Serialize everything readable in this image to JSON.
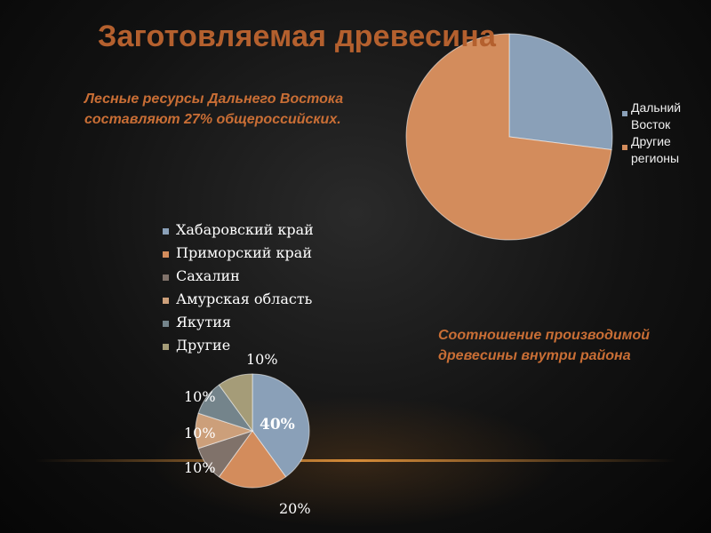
{
  "title": "Заготовляемая древесина",
  "caption_forest": "Лесные ресурсы Дальнего Востока составляют 27% общероссийских.",
  "caption_ratio": "Соотношение производимой древесины внутри района",
  "chart_data": [
    {
      "type": "pie",
      "slices": [
        {
          "label": "Дальний Восток",
          "value": 27,
          "color": "#8aa0b8"
        },
        {
          "label": "Другие регионы",
          "value": 73,
          "color": "#d38c5c"
        }
      ],
      "legend": "right"
    },
    {
      "type": "pie",
      "slices": [
        {
          "label": "Хабаровский край",
          "value": 40,
          "display": "40%",
          "color": "#8aa0b8"
        },
        {
          "label": "Приморский край",
          "value": 20,
          "display": "20%",
          "color": "#d38c5c"
        },
        {
          "label": "Сахалин",
          "value": 10,
          "display": "10%",
          "color": "#80726a"
        },
        {
          "label": "Амурская область",
          "value": 10,
          "display": "10%",
          "color": "#cc9f7a"
        },
        {
          "label": "Якутия",
          "value": 10,
          "display": "10%",
          "color": "#74848b"
        },
        {
          "label": "Другие",
          "value": 10,
          "display": "10%",
          "color": "#a59c78"
        }
      ],
      "legend": "top"
    }
  ]
}
